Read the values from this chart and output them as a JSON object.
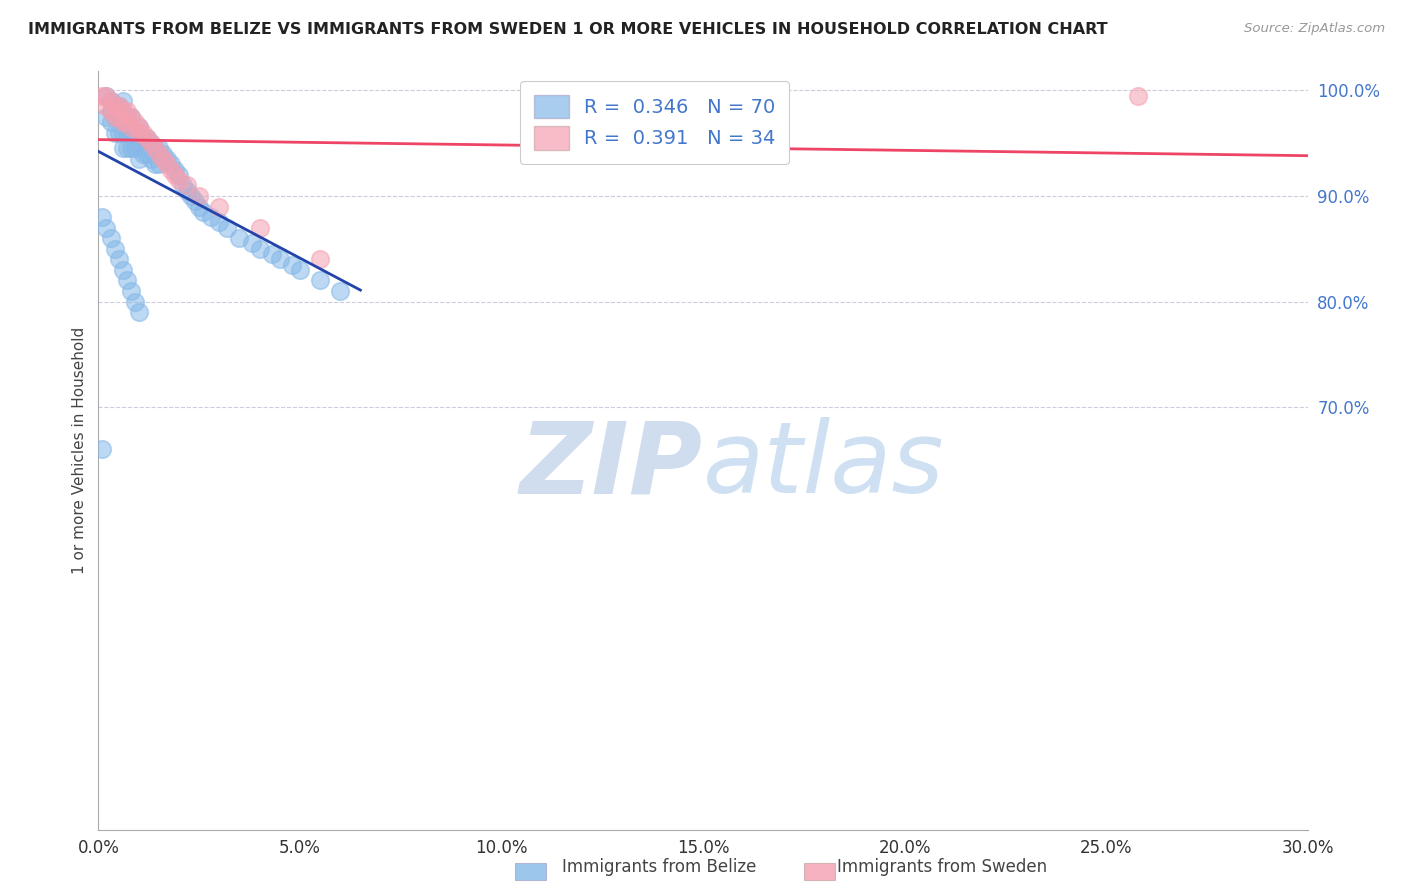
{
  "title": "IMMIGRANTS FROM BELIZE VS IMMIGRANTS FROM SWEDEN 1 OR MORE VEHICLES IN HOUSEHOLD CORRELATION CHART",
  "source": "Source: ZipAtlas.com",
  "ylabel": "1 or more Vehicles in Household",
  "xmin": 0.0,
  "xmax": 0.3,
  "ymin": 0.3,
  "ymax": 1.018,
  "xticks": [
    0.0,
    0.05,
    0.1,
    0.15,
    0.2,
    0.25,
    0.3
  ],
  "yticks": [
    1.0,
    0.9,
    0.8,
    0.7
  ],
  "ytick_labels": [
    "100.0%",
    "90.0%",
    "80.0%",
    "70.0%"
  ],
  "xtick_labels": [
    "0.0%",
    "5.0%",
    "10.0%",
    "15.0%",
    "20.0%",
    "25.0%",
    "30.0%"
  ],
  "legend_label1": "Immigrants from Belize",
  "legend_label2": "Immigrants from Sweden",
  "R_belize": 0.346,
  "N_belize": 70,
  "R_sweden": 0.391,
  "N_sweden": 34,
  "color_belize": "#85B8E8",
  "color_sweden": "#F4A0B0",
  "trendline_color_belize": "#2244AA",
  "trendline_color_sweden": "#EE4466",
  "background_color": "#FFFFFF",
  "grid_color": "#CCCCDD",
  "watermark_zip": "ZIP",
  "watermark_atlas": "atlas",
  "belize_x": [
    0.001,
    0.002,
    0.002,
    0.003,
    0.003,
    0.003,
    0.004,
    0.004,
    0.004,
    0.005,
    0.005,
    0.005,
    0.006,
    0.006,
    0.006,
    0.006,
    0.007,
    0.007,
    0.007,
    0.008,
    0.008,
    0.008,
    0.009,
    0.009,
    0.01,
    0.01,
    0.01,
    0.011,
    0.011,
    0.012,
    0.012,
    0.013,
    0.013,
    0.014,
    0.014,
    0.015,
    0.015,
    0.016,
    0.017,
    0.018,
    0.019,
    0.02,
    0.021,
    0.022,
    0.023,
    0.024,
    0.025,
    0.026,
    0.028,
    0.03,
    0.032,
    0.035,
    0.038,
    0.04,
    0.043,
    0.045,
    0.048,
    0.05,
    0.055,
    0.06,
    0.001,
    0.002,
    0.003,
    0.004,
    0.005,
    0.006,
    0.007,
    0.008,
    0.009,
    0.01
  ],
  "belize_y": [
    0.66,
    0.995,
    0.975,
    0.99,
    0.98,
    0.97,
    0.985,
    0.975,
    0.96,
    0.985,
    0.975,
    0.96,
    0.99,
    0.975,
    0.96,
    0.945,
    0.975,
    0.96,
    0.945,
    0.975,
    0.96,
    0.945,
    0.96,
    0.945,
    0.965,
    0.95,
    0.935,
    0.955,
    0.94,
    0.955,
    0.94,
    0.95,
    0.935,
    0.945,
    0.93,
    0.945,
    0.93,
    0.94,
    0.935,
    0.93,
    0.925,
    0.92,
    0.91,
    0.905,
    0.9,
    0.895,
    0.89,
    0.885,
    0.88,
    0.875,
    0.87,
    0.86,
    0.855,
    0.85,
    0.845,
    0.84,
    0.835,
    0.83,
    0.82,
    0.81,
    0.88,
    0.87,
    0.86,
    0.85,
    0.84,
    0.83,
    0.82,
    0.81,
    0.8,
    0.79
  ],
  "sweden_x": [
    0.001,
    0.002,
    0.002,
    0.003,
    0.003,
    0.004,
    0.004,
    0.005,
    0.005,
    0.006,
    0.006,
    0.007,
    0.007,
    0.008,
    0.008,
    0.009,
    0.01,
    0.01,
    0.011,
    0.012,
    0.013,
    0.014,
    0.015,
    0.016,
    0.017,
    0.018,
    0.019,
    0.02,
    0.022,
    0.025,
    0.03,
    0.04,
    0.055,
    0.258
  ],
  "sweden_y": [
    0.995,
    0.995,
    0.985,
    0.99,
    0.98,
    0.985,
    0.975,
    0.985,
    0.975,
    0.98,
    0.97,
    0.98,
    0.97,
    0.975,
    0.965,
    0.97,
    0.965,
    0.96,
    0.96,
    0.955,
    0.95,
    0.945,
    0.94,
    0.935,
    0.93,
    0.925,
    0.92,
    0.915,
    0.91,
    0.9,
    0.89,
    0.87,
    0.84,
    0.995
  ]
}
